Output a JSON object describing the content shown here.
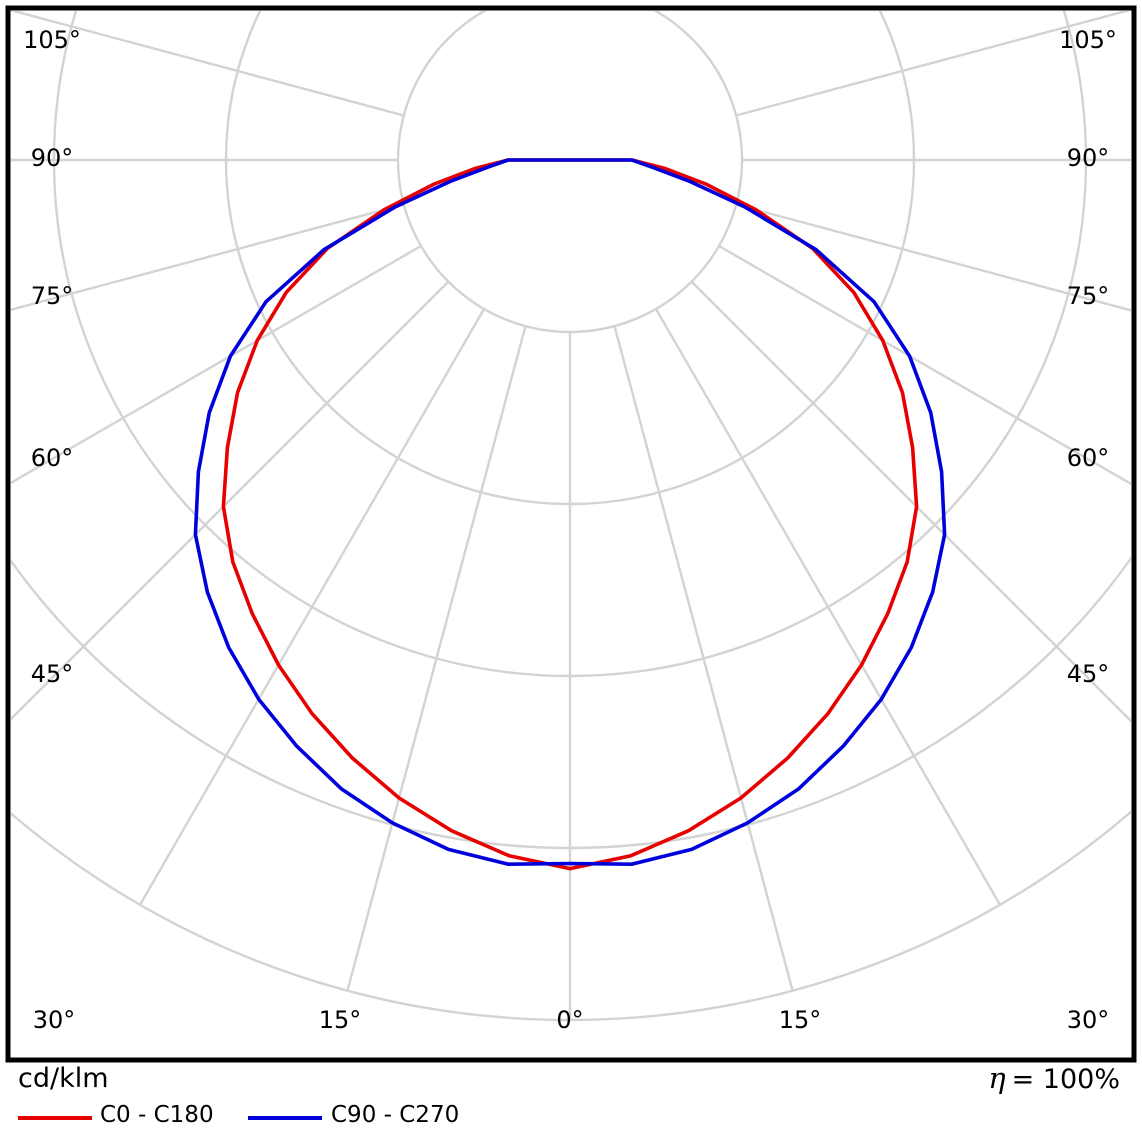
{
  "unit_label": "cd/klm",
  "efficiency": {
    "symbol": "η",
    "value": "= 100%"
  },
  "legend": [
    {
      "label": "C0 - C180",
      "color": "#e60000"
    },
    {
      "label": "C90 - C270",
      "color": "#0000dd"
    }
  ],
  "chart_data": {
    "type": "polar",
    "radial_unit": "cd/klm",
    "grid": {
      "rings": 5,
      "ring_values_labeled": false,
      "spoke_step_deg": 15,
      "spoke_max_deg": 105,
      "zero_direction": "down",
      "color": "#d3d3d3"
    },
    "angle_labels": {
      "left": [
        "105°",
        "90°",
        "75°",
        "60°",
        "45°"
      ],
      "right": [
        "105°",
        "90°",
        "75°",
        "60°",
        "45°"
      ],
      "bottom": [
        "30°",
        "15°",
        "0°",
        "15°",
        "30°"
      ]
    },
    "series": [
      {
        "name": "C0 - C180",
        "color": "#e60000",
        "symmetric": true,
        "gamma_deg": [
          0,
          5,
          10,
          15,
          20,
          25,
          30,
          35,
          40,
          45,
          50,
          55,
          60,
          65,
          70,
          75,
          80,
          85,
          90
        ],
        "radius_divisions": [
          4.12,
          4.06,
          3.96,
          3.84,
          3.7,
          3.55,
          3.39,
          3.22,
          3.05,
          2.85,
          2.6,
          2.36,
          2.1,
          1.82,
          1.5,
          1.12,
          0.8,
          0.55,
          0.36
        ]
      },
      {
        "name": "C90 - C270",
        "color": "#0000dd",
        "symmetric": true,
        "gamma_deg": [
          0,
          5,
          10,
          15,
          20,
          25,
          30,
          35,
          40,
          45,
          50,
          55,
          60,
          65,
          70,
          75,
          80,
          85,
          90
        ],
        "radius_divisions": [
          4.09,
          4.11,
          4.07,
          3.99,
          3.89,
          3.76,
          3.62,
          3.46,
          3.28,
          3.08,
          2.82,
          2.56,
          2.28,
          1.95,
          1.52,
          1.05,
          0.7,
          0.48,
          0.36
        ]
      }
    ]
  }
}
